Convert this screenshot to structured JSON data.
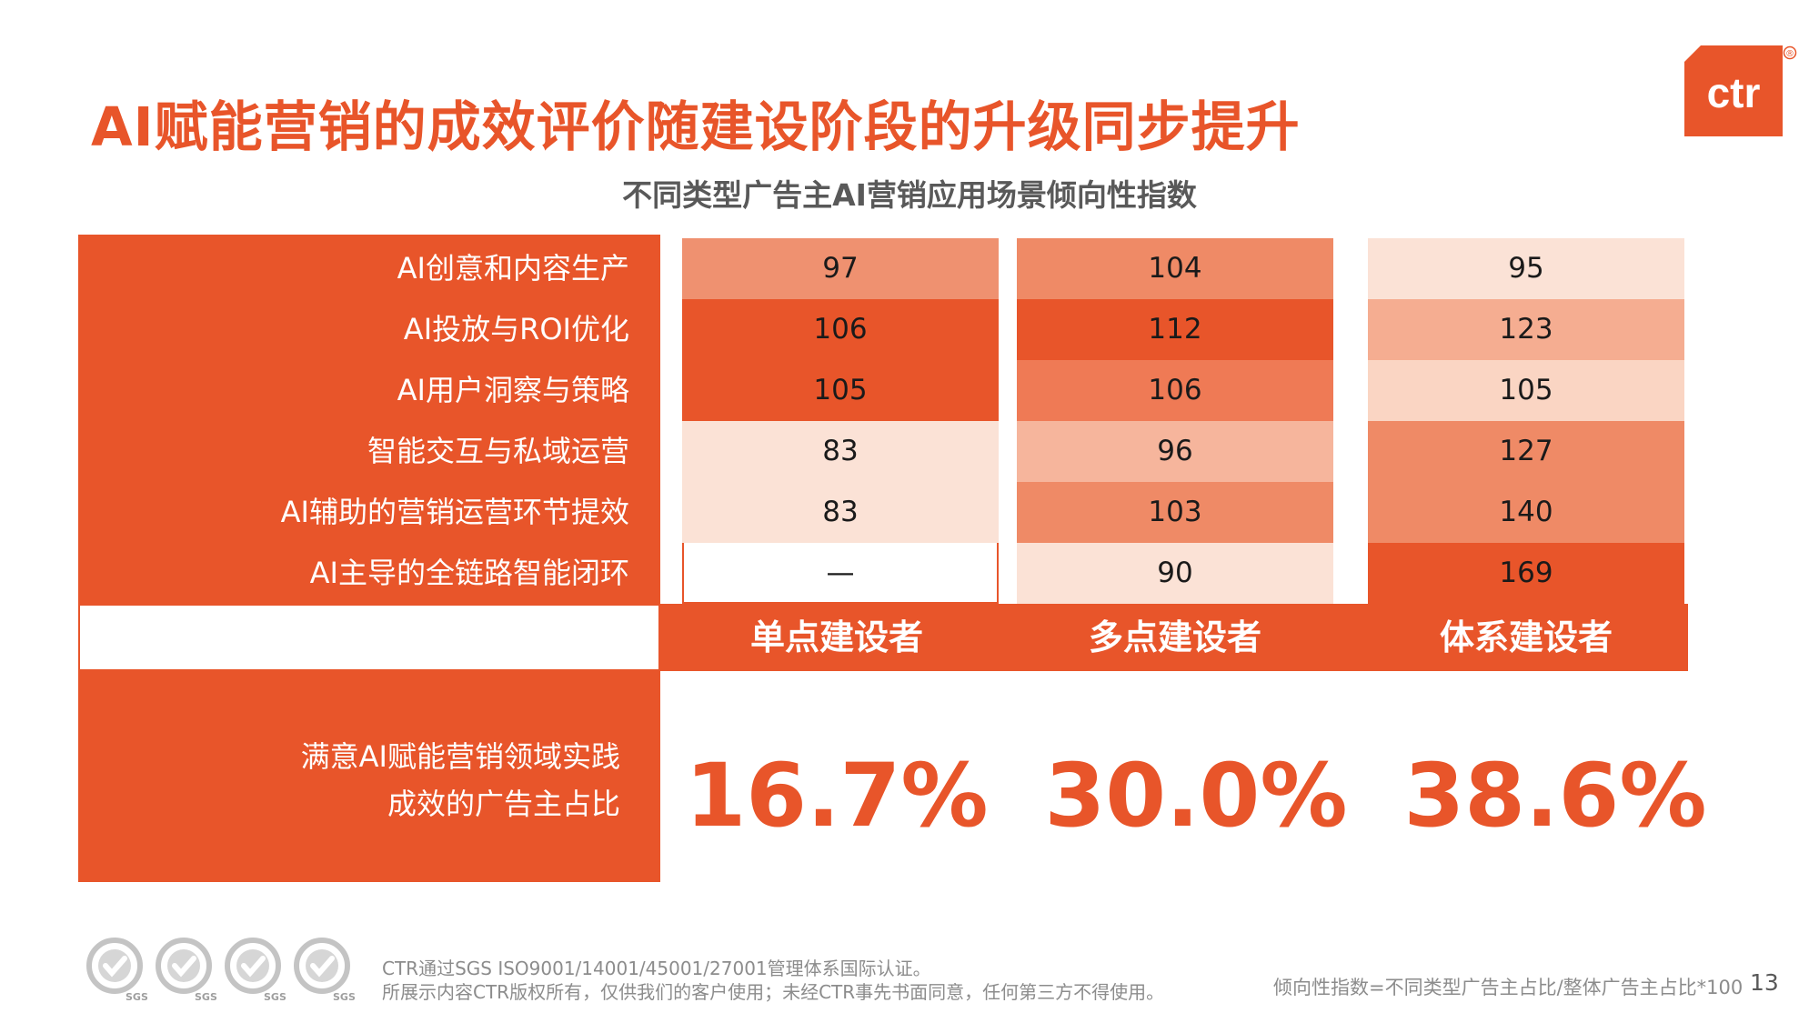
{
  "title": "AI赋能营销的成效评价随建设阶段的升级同步提升",
  "logo": {
    "text": "ctr",
    "mark": "®"
  },
  "colors": {
    "accent": "#e8552a"
  },
  "chart_data": {
    "type": "table",
    "title": "不同类型广告主AI营销应用场景倾向性指数",
    "rows": [
      "AI创意和内容生产",
      "AI投放与ROI优化",
      "AI用户洞察与策略",
      "智能交互与私域运营",
      "AI辅助的营销运营环节提效",
      "AI主导的全链路智能闭环"
    ],
    "columns": [
      "单点建设者",
      "多点建设者",
      "体系建设者"
    ],
    "values": [
      [
        "97",
        "104",
        "95"
      ],
      [
        "106",
        "112",
        "123"
      ],
      [
        "105",
        "106",
        "105"
      ],
      [
        "83",
        "96",
        "127"
      ],
      [
        "83",
        "103",
        "140"
      ],
      [
        "—",
        "90",
        "169"
      ]
    ],
    "heat_colors": [
      [
        "#ef9170",
        "#ef8a66",
        "#fbe2d6"
      ],
      [
        "#e8552a",
        "#e8552a",
        "#f5ad91"
      ],
      [
        "#e8552a",
        "#ef7a55",
        "#fad5c3"
      ],
      [
        "#fbe2d6",
        "#f6b59c",
        "#ef8a66"
      ],
      [
        "#fbe2d6",
        "#ef8a66",
        "#ef8a66"
      ],
      [
        "#ffffff",
        "#fbe2d6",
        "#e8552a"
      ]
    ],
    "satisfaction": {
      "label_lines": [
        "满意AI赋能营销领域实践",
        "成效的广告主占比"
      ],
      "values": [
        "16.7%",
        "30.0%",
        "38.6%"
      ]
    }
  },
  "footer": {
    "cert_labels": [
      "SGS",
      "SGS",
      "SGS",
      "SGS"
    ],
    "notice_lines": [
      "CTR通过SGS ISO9001/14001/45001/27001管理体系国际认证。",
      "所展示内容CTR版权所有，仅供我们的客户使用；未经CTR事先书面同意，任何第三方不得使用。"
    ],
    "formula": "倾向性指数=不同类型广告主占比/整体广告主占比*100",
    "page_number": "13"
  }
}
